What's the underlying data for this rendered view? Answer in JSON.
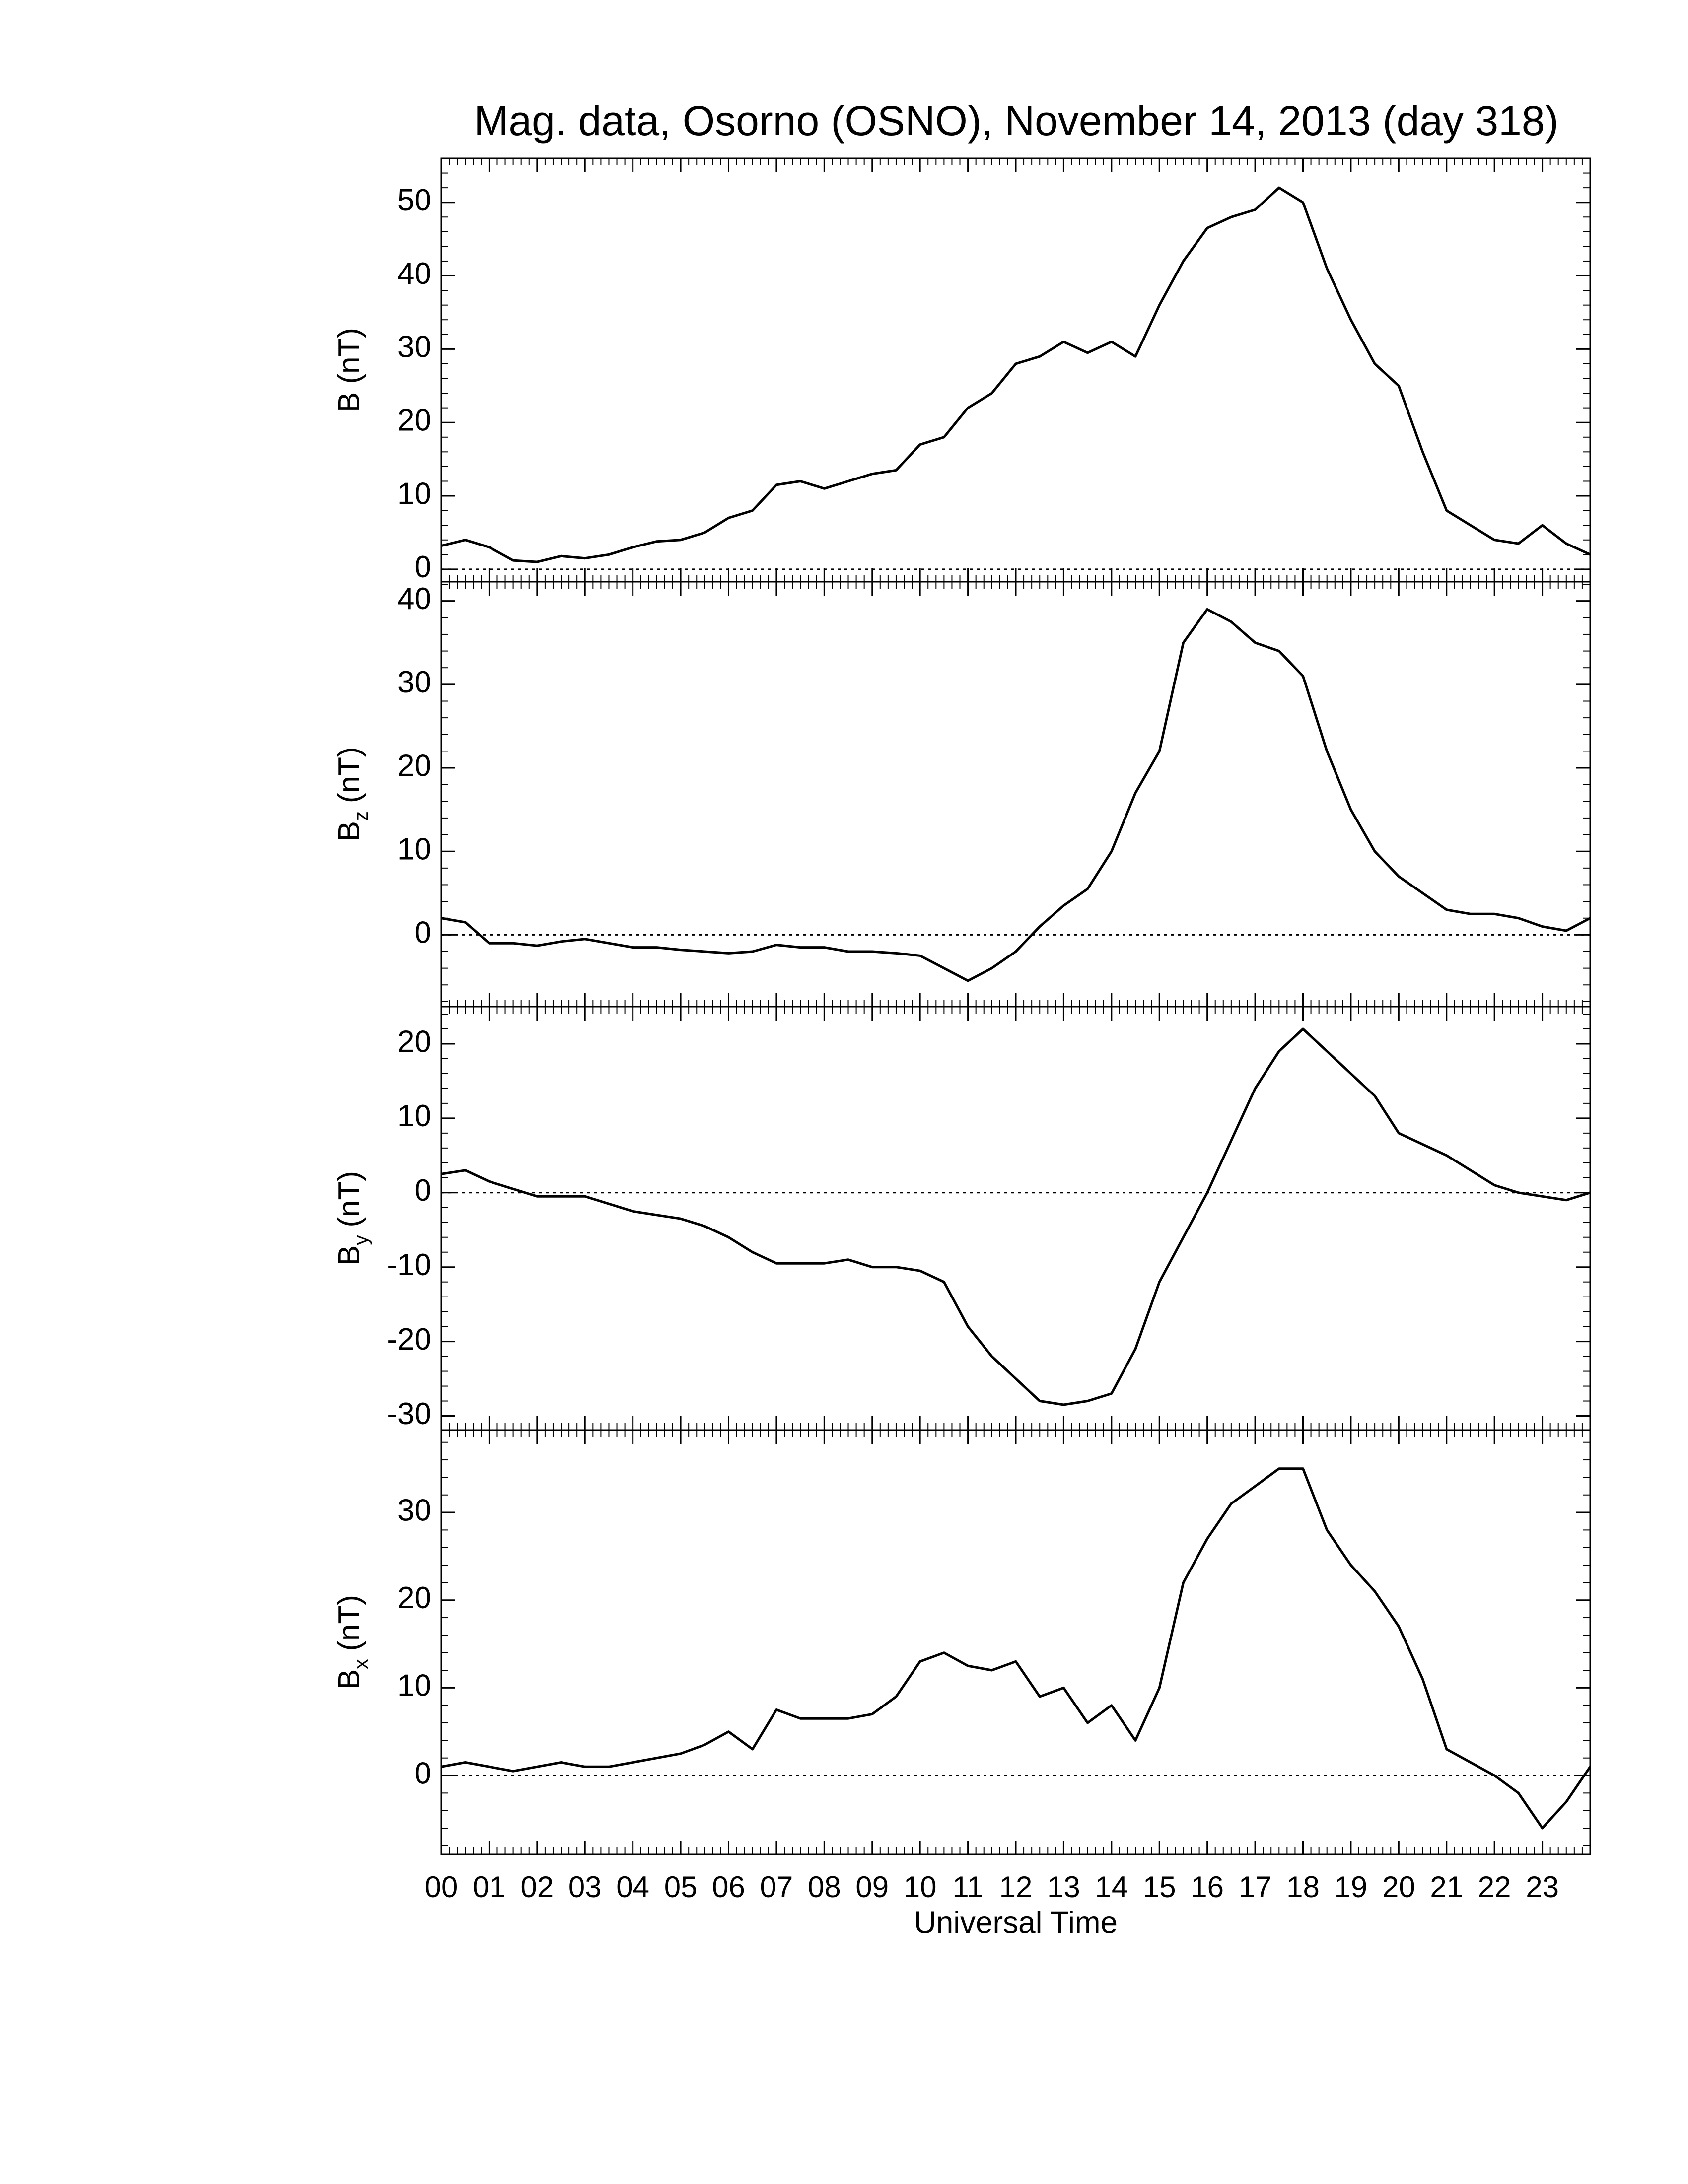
{
  "chart_data": [
    {
      "type": "line",
      "title": "Mag. data, Osorno (OSNO), November 14, 2013 (day 318)",
      "ylabel": {
        "base": "B",
        "unit": "(nT)"
      },
      "xlim": [
        0,
        24
      ],
      "ylim": [
        -1.7,
        56
      ],
      "yticks": [
        0,
        10,
        20,
        30,
        40,
        50
      ],
      "zero_line": true,
      "series": [
        {
          "color": "#000000",
          "x": [
            0,
            0.5,
            1,
            1.5,
            2,
            2.5,
            3,
            3.5,
            4,
            4.5,
            5,
            5.5,
            6,
            6.5,
            7,
            7.5,
            8,
            8.5,
            9,
            9.5,
            10,
            10.5,
            11,
            11.5,
            12,
            12.5,
            13,
            13.5,
            14,
            14.5,
            15,
            15.5,
            16,
            16.5,
            17,
            17.5,
            18,
            18.5,
            19,
            19.5,
            20,
            20.5,
            21,
            21.5,
            22,
            22.5,
            23,
            23.5,
            24
          ],
          "values": [
            3.2,
            4,
            3,
            1.2,
            1,
            1.8,
            1.5,
            2,
            3,
            3.8,
            4,
            5,
            7,
            8,
            11.5,
            12,
            11,
            12,
            13,
            13.5,
            17,
            18,
            22,
            24,
            28,
            29,
            31,
            29.5,
            31,
            29,
            36,
            42,
            46.5,
            48,
            49,
            52,
            50,
            41,
            34,
            28,
            25,
            16,
            8,
            6,
            4,
            3.5,
            6,
            3.5,
            2
          ]
        }
      ]
    },
    {
      "type": "line",
      "ylabel": {
        "base": "B",
        "sub": "z",
        "unit": "(nT)"
      },
      "xlim": [
        0,
        24
      ],
      "ylim": [
        -8.6,
        42.3
      ],
      "yticks": [
        0,
        10,
        20,
        30,
        40
      ],
      "zero_line": true,
      "series": [
        {
          "color": "#000000",
          "x": [
            0,
            0.5,
            1,
            1.5,
            2,
            2.5,
            3,
            3.5,
            4,
            4.5,
            5,
            5.5,
            6,
            6.5,
            7,
            7.5,
            8,
            8.5,
            9,
            9.5,
            10,
            10.5,
            11,
            11.5,
            12,
            12.5,
            13,
            13.5,
            14,
            14.5,
            15,
            15.5,
            16,
            16.5,
            17,
            17.5,
            18,
            18.5,
            19,
            19.5,
            20,
            20.5,
            21,
            21.5,
            22,
            22.5,
            23,
            23.5,
            24
          ],
          "values": [
            2,
            1.5,
            -1,
            -1,
            -1.3,
            -0.8,
            -0.5,
            -1,
            -1.5,
            -1.5,
            -1.8,
            -2,
            -2.2,
            -2,
            -1.2,
            -1.5,
            -1.5,
            -2,
            -2,
            -2.2,
            -2.5,
            -4,
            -5.5,
            -4,
            -2,
            1,
            3.5,
            5.5,
            10,
            17,
            22,
            35,
            39,
            37.5,
            35,
            34,
            31,
            22,
            15,
            10,
            7,
            5,
            3,
            2.5,
            2.5,
            2,
            1,
            0.5,
            2
          ]
        }
      ]
    },
    {
      "type": "line",
      "ylabel": {
        "base": "B",
        "sub": "y",
        "unit": "(nT)"
      },
      "xlim": [
        0,
        24
      ],
      "ylim": [
        -31.9,
        25
      ],
      "yticks": [
        -30,
        -20,
        -10,
        0,
        10,
        20
      ],
      "zero_line": true,
      "series": [
        {
          "color": "#000000",
          "x": [
            0,
            0.5,
            1,
            1.5,
            2,
            2.5,
            3,
            3.5,
            4,
            4.5,
            5,
            5.5,
            6,
            6.5,
            7,
            7.5,
            8,
            8.5,
            9,
            9.5,
            10,
            10.5,
            11,
            11.5,
            12,
            12.5,
            13,
            13.5,
            14,
            14.5,
            15,
            15.5,
            16,
            16.5,
            17,
            17.5,
            18,
            18.5,
            19,
            19.5,
            20,
            20.5,
            21,
            21.5,
            22,
            22.5,
            23,
            23.5,
            24
          ],
          "values": [
            2.5,
            3,
            1.5,
            0.5,
            -0.5,
            -0.5,
            -0.5,
            -1.5,
            -2.5,
            -3,
            -3.5,
            -4.5,
            -6,
            -8,
            -9.5,
            -9.5,
            -9.5,
            -9,
            -10,
            -10,
            -10.5,
            -12,
            -18,
            -22,
            -25,
            -28,
            -28.5,
            -28,
            -27,
            -21,
            -12,
            -6,
            0,
            7,
            14,
            19,
            22,
            19,
            16,
            13,
            8,
            6.5,
            5,
            3,
            1,
            0,
            -0.5,
            -1,
            0
          ]
        }
      ]
    },
    {
      "type": "line",
      "ylabel": {
        "base": "B",
        "sub": "x",
        "unit": "(nT)"
      },
      "xlabel": "Universal Time",
      "xlim": [
        0,
        24
      ],
      "ylim": [
        -9,
        39.4
      ],
      "yticks": [
        0,
        10,
        20,
        30
      ],
      "zero_line": true,
      "xticks": [
        {
          "value": 0,
          "label": "00"
        },
        {
          "value": 1,
          "label": "01"
        },
        {
          "value": 2,
          "label": "02"
        },
        {
          "value": 3,
          "label": "03"
        },
        {
          "value": 4,
          "label": "04"
        },
        {
          "value": 5,
          "label": "05"
        },
        {
          "value": 6,
          "label": "06"
        },
        {
          "value": 7,
          "label": "07"
        },
        {
          "value": 8,
          "label": "08"
        },
        {
          "value": 9,
          "label": "09"
        },
        10,
        11,
        12,
        13,
        14,
        15,
        16,
        17,
        18,
        19,
        20,
        21,
        22,
        23
      ],
      "series": [
        {
          "color": "#000000",
          "x": [
            0,
            0.5,
            1,
            1.5,
            2,
            2.5,
            3,
            3.5,
            4,
            4.5,
            5,
            5.5,
            6,
            6.5,
            7,
            7.5,
            8,
            8.5,
            9,
            9.5,
            10,
            10.5,
            11,
            11.5,
            12,
            12.5,
            13,
            13.5,
            14,
            14.5,
            15,
            15.5,
            16,
            16.5,
            17,
            17.5,
            18,
            18.5,
            19,
            19.5,
            20,
            20.5,
            21,
            21.5,
            22,
            22.5,
            23,
            23.5,
            24
          ],
          "values": [
            1,
            1.5,
            1,
            0.5,
            1,
            1.5,
            1,
            1,
            1.5,
            2,
            2.5,
            3.5,
            5,
            3,
            7.5,
            6.5,
            6.5,
            6.5,
            7,
            9,
            13,
            14,
            12.5,
            12,
            13,
            9,
            10,
            6,
            8,
            4,
            10,
            22,
            27,
            31,
            33,
            35,
            35,
            28,
            24,
            21,
            17,
            11,
            3,
            1.5,
            0,
            -2,
            -6,
            -3,
            1
          ]
        }
      ]
    }
  ]
}
